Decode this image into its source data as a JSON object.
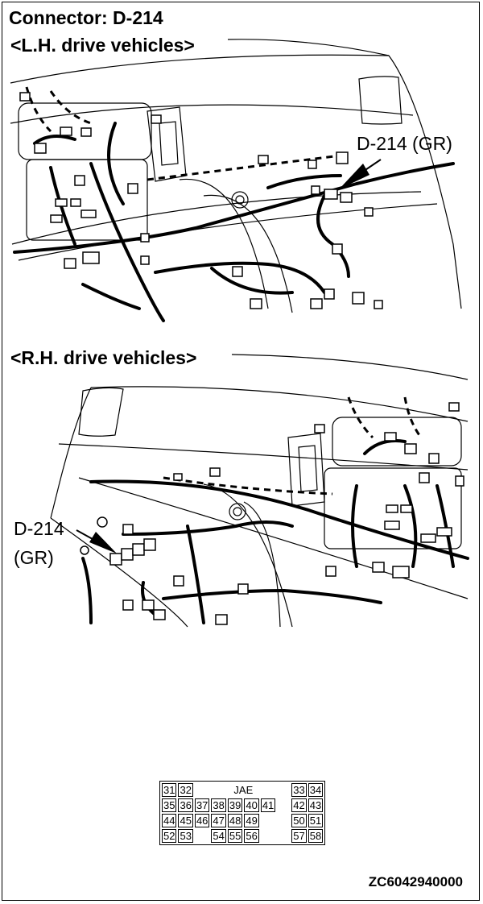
{
  "heading": "Connector: D-214",
  "lh": {
    "title": "<L.H. drive vehicles>",
    "callout": "D-214 (GR)"
  },
  "rh": {
    "title": "<R.H. drive vehicles>",
    "callout_line1": "D-214",
    "callout_line2": "(GR)"
  },
  "connector_face": {
    "mark": "JAE",
    "rows": [
      [
        "31",
        "32",
        "",
        "",
        "",
        "",
        "",
        "",
        "33",
        "34"
      ],
      [
        "35",
        "36",
        "37",
        "38",
        "39",
        "40",
        "41",
        "42",
        "43"
      ],
      [
        "44",
        "45",
        "46",
        "47",
        "48",
        "49",
        "",
        "50",
        "51"
      ],
      [
        "52",
        "53",
        "",
        "54",
        "55",
        "56",
        "",
        "57",
        "58"
      ]
    ]
  },
  "figure_code": "ZC6042940000",
  "colors": {
    "line": "#000000",
    "background": "#ffffff"
  }
}
